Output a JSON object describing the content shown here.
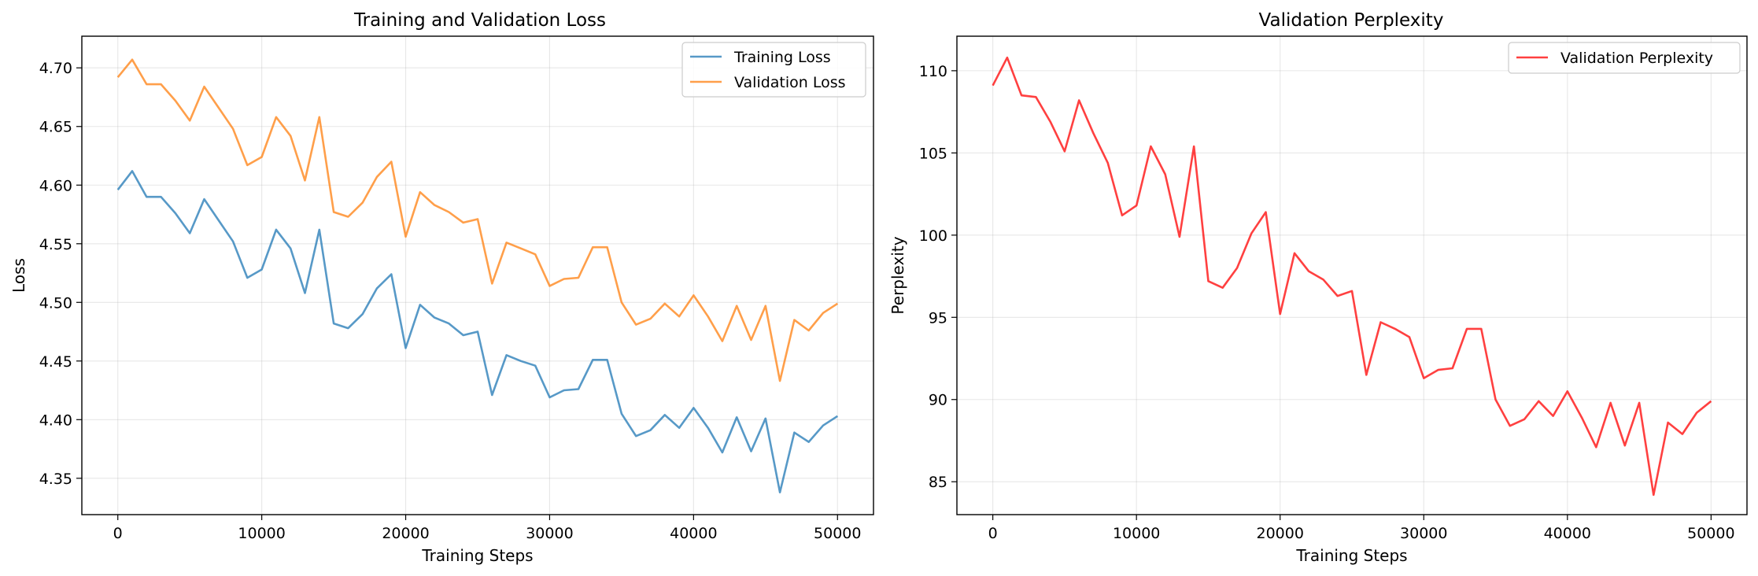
{
  "chart_data": [
    {
      "type": "line",
      "title": "Training and Validation Loss",
      "xlabel": "Training Steps",
      "ylabel": "Loss",
      "xlim": [
        -2500,
        52500
      ],
      "ylim": [
        4.319,
        4.727
      ],
      "xticks": [
        0,
        10000,
        20000,
        30000,
        40000,
        50000
      ],
      "xtick_labels": [
        "0",
        "10000",
        "20000",
        "30000",
        "40000",
        "50000"
      ],
      "yticks": [
        4.35,
        4.4,
        4.45,
        4.5,
        4.55,
        4.6,
        4.65,
        4.7
      ],
      "ytick_labels": [
        "4.35",
        "4.40",
        "4.45",
        "4.50",
        "4.55",
        "4.60",
        "4.65",
        "4.70"
      ],
      "grid": true,
      "legend_position": "top-right",
      "x": [
        0,
        1000,
        2000,
        3000,
        4000,
        5000,
        6000,
        7000,
        8000,
        9000,
        10000,
        11000,
        12000,
        13000,
        14000,
        15000,
        16000,
        17000,
        18000,
        19000,
        20000,
        21000,
        22000,
        23000,
        24000,
        25000,
        26000,
        27000,
        28000,
        29000,
        30000,
        31000,
        32000,
        33000,
        34000,
        35000,
        36000,
        37000,
        38000,
        39000,
        40000,
        41000,
        42000,
        43000,
        44000,
        45000,
        46000,
        47000,
        48000,
        49000,
        50000
      ],
      "series": [
        {
          "name": "Training Loss",
          "color": "#1f77b4",
          "values": [
            4.596,
            4.612,
            4.59,
            4.59,
            4.576,
            4.559,
            4.588,
            4.57,
            4.552,
            4.521,
            4.528,
            4.562,
            4.546,
            4.508,
            4.562,
            4.482,
            4.478,
            4.49,
            4.512,
            4.524,
            4.461,
            4.498,
            4.487,
            4.482,
            4.472,
            4.475,
            4.421,
            4.455,
            4.45,
            4.446,
            4.419,
            4.425,
            4.426,
            4.451,
            4.451,
            4.405,
            4.386,
            4.391,
            4.404,
            4.393,
            4.41,
            4.393,
            4.372,
            4.402,
            4.373,
            4.401,
            4.338,
            4.389,
            4.381,
            4.395,
            4.403
          ]
        },
        {
          "name": "Validation Loss",
          "color": "#ff7f0e",
          "values": [
            4.692,
            4.707,
            4.686,
            4.686,
            4.672,
            4.655,
            4.684,
            4.666,
            4.648,
            4.617,
            4.624,
            4.658,
            4.642,
            4.604,
            4.658,
            4.577,
            4.573,
            4.585,
            4.607,
            4.62,
            4.556,
            4.594,
            4.583,
            4.577,
            4.568,
            4.571,
            4.516,
            4.551,
            4.546,
            4.541,
            4.514,
            4.52,
            4.521,
            4.547,
            4.547,
            4.5,
            4.481,
            4.486,
            4.499,
            4.488,
            4.506,
            4.488,
            4.467,
            4.497,
            4.468,
            4.497,
            4.433,
            4.485,
            4.476,
            4.491,
            4.499
          ]
        }
      ]
    },
    {
      "type": "line",
      "title": "Validation Perplexity",
      "xlabel": "Training Steps",
      "ylabel": "Perplexity",
      "xlim": [
        -2500,
        52500
      ],
      "ylim": [
        83.0,
        112.1
      ],
      "xticks": [
        0,
        10000,
        20000,
        30000,
        40000,
        50000
      ],
      "xtick_labels": [
        "0",
        "10000",
        "20000",
        "30000",
        "40000",
        "50000"
      ],
      "yticks": [
        85,
        90,
        95,
        100,
        105,
        110
      ],
      "ytick_labels": [
        "85",
        "90",
        "95",
        "100",
        "105",
        "110"
      ],
      "grid": true,
      "legend_position": "top-right",
      "x": [
        0,
        1000,
        2000,
        3000,
        4000,
        5000,
        6000,
        7000,
        8000,
        9000,
        10000,
        11000,
        12000,
        13000,
        14000,
        15000,
        16000,
        17000,
        18000,
        19000,
        20000,
        21000,
        22000,
        23000,
        24000,
        25000,
        26000,
        27000,
        28000,
        29000,
        30000,
        31000,
        32000,
        33000,
        34000,
        35000,
        36000,
        37000,
        38000,
        39000,
        40000,
        41000,
        42000,
        43000,
        44000,
        45000,
        46000,
        47000,
        48000,
        49000,
        50000
      ],
      "series": [
        {
          "name": "Validation Perplexity",
          "color": "#ff0000",
          "values": [
            109.1,
            110.8,
            108.5,
            108.4,
            106.9,
            105.1,
            108.2,
            106.2,
            104.4,
            101.2,
            101.8,
            105.4,
            103.7,
            99.9,
            105.4,
            97.2,
            96.8,
            98.0,
            100.1,
            101.4,
            95.2,
            98.9,
            97.8,
            97.3,
            96.3,
            96.6,
            91.5,
            94.7,
            94.3,
            93.8,
            91.3,
            91.8,
            91.9,
            94.3,
            94.3,
            90.0,
            88.4,
            88.8,
            89.9,
            89.0,
            90.5,
            88.9,
            87.1,
            89.8,
            87.2,
            89.8,
            84.2,
            88.6,
            87.9,
            89.2,
            89.9
          ]
        }
      ]
    }
  ]
}
